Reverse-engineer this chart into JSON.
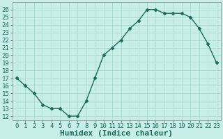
{
  "x": [
    0,
    1,
    2,
    3,
    4,
    5,
    6,
    7,
    8,
    9,
    10,
    11,
    12,
    13,
    14,
    15,
    16,
    17,
    18,
    19,
    20,
    21,
    22,
    23
  ],
  "y": [
    17,
    16,
    15,
    13.5,
    13,
    13,
    12,
    12,
    14,
    17,
    20,
    21,
    22,
    23.5,
    24.5,
    26,
    26,
    25.5,
    25.5,
    25.5,
    25,
    23.5,
    21.5,
    19
  ],
  "line_color": "#1a6b5a",
  "marker": "D",
  "marker_size": 2.5,
  "bg_color": "#c8eeea",
  "grid_color": "#aaddcc",
  "xlabel": "Humidex (Indice chaleur)",
  "xlabel_fontsize": 8,
  "xlim": [
    -0.5,
    23.5
  ],
  "ylim": [
    11.5,
    27
  ],
  "yticks": [
    12,
    13,
    14,
    15,
    16,
    17,
    18,
    19,
    20,
    21,
    22,
    23,
    24,
    25,
    26
  ],
  "xticks": [
    0,
    1,
    2,
    3,
    4,
    5,
    6,
    7,
    8,
    9,
    10,
    11,
    12,
    13,
    14,
    15,
    16,
    17,
    18,
    19,
    20,
    21,
    22,
    23
  ],
  "tick_fontsize": 6.5,
  "label_color": "#1a6b5a",
  "line_width": 1.0,
  "spine_color": "#888888"
}
